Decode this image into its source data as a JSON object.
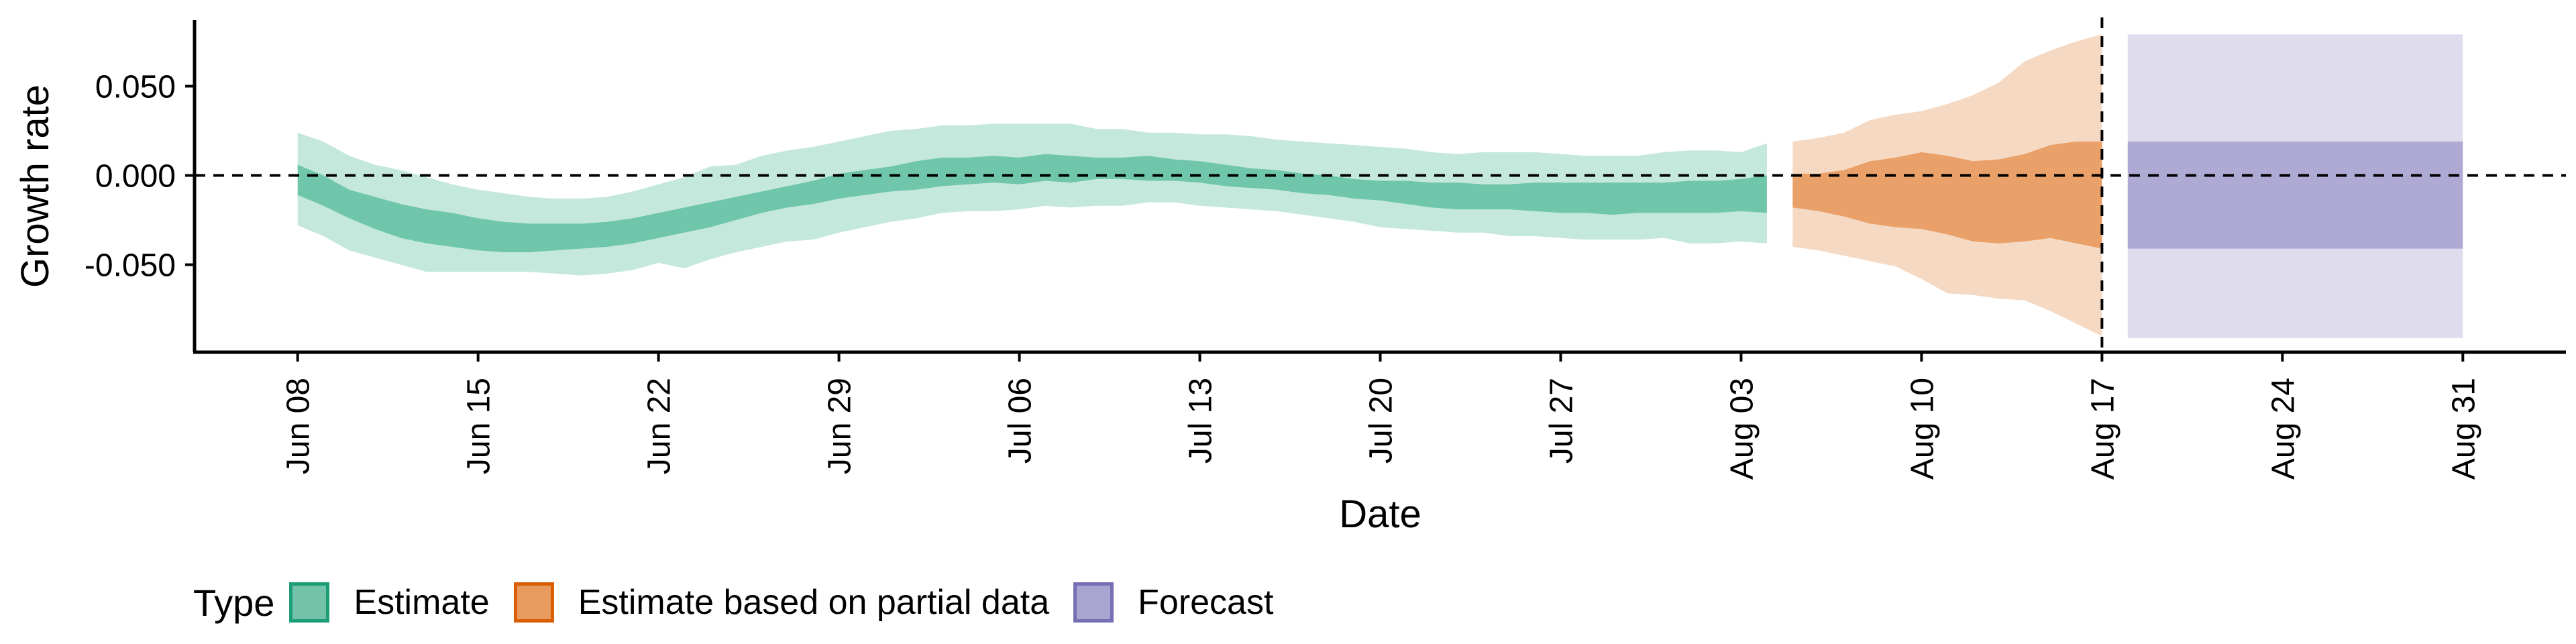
{
  "chart_data": {
    "type": "area",
    "title": "",
    "xlabel": "Date",
    "ylabel": "Growth rate",
    "x_ticks": [
      "Jun 08",
      "Jun 15",
      "Jun 22",
      "Jun 29",
      "Jul 06",
      "Jul 13",
      "Jul 20",
      "Jul 27",
      "Aug 03",
      "Aug 10",
      "Aug 17",
      "Aug 24",
      "Aug 31"
    ],
    "y_ticks": [
      "0.050",
      "0.000",
      "-0.050"
    ],
    "xlim": [
      "2021-06-04",
      "2021-09-04"
    ],
    "ylim": [
      -0.099,
      0.087
    ],
    "reference_line_y": 0.0,
    "reference_line_x": "2021-08-17",
    "grid": false,
    "legend": {
      "title": "Type",
      "position": "bottom-left",
      "entries": [
        {
          "label": "Estimate",
          "color": "#66c2a5",
          "fill": "#72c3a7",
          "border": "#1b9e77"
        },
        {
          "label": "Estimate based on partial data",
          "color": "#e89a5f",
          "fill": "#e89a5f",
          "border": "#d95f02"
        },
        {
          "label": "Forecast",
          "color": "#a9a4d0",
          "fill": "#a9a4d0",
          "border": "#7570b3"
        }
      ]
    },
    "series": [
      {
        "name": "Estimate",
        "color": "#66c2a5",
        "x": [
          "2021-06-08",
          "2021-06-09",
          "2021-06-10",
          "2021-06-11",
          "2021-06-12",
          "2021-06-13",
          "2021-06-14",
          "2021-06-15",
          "2021-06-16",
          "2021-06-17",
          "2021-06-18",
          "2021-06-19",
          "2021-06-20",
          "2021-06-21",
          "2021-06-22",
          "2021-06-23",
          "2021-06-24",
          "2021-06-25",
          "2021-06-26",
          "2021-06-27",
          "2021-06-28",
          "2021-06-29",
          "2021-06-30",
          "2021-07-01",
          "2021-07-02",
          "2021-07-03",
          "2021-07-04",
          "2021-07-05",
          "2021-07-06",
          "2021-07-07",
          "2021-07-08",
          "2021-07-09",
          "2021-07-10",
          "2021-07-11",
          "2021-07-12",
          "2021-07-13",
          "2021-07-14",
          "2021-07-15",
          "2021-07-16",
          "2021-07-17",
          "2021-07-18",
          "2021-07-19",
          "2021-07-20",
          "2021-07-21",
          "2021-07-22",
          "2021-07-23",
          "2021-07-24",
          "2021-07-25",
          "2021-07-26",
          "2021-07-27",
          "2021-07-28",
          "2021-07-29",
          "2021-07-30",
          "2021-07-31",
          "2021-08-01",
          "2021-08-02",
          "2021-08-03",
          "2021-08-04"
        ],
        "lower_90": [
          -0.028,
          -0.034,
          -0.042,
          -0.046,
          -0.05,
          -0.054,
          -0.054,
          -0.054,
          -0.054,
          -0.054,
          -0.055,
          -0.056,
          -0.055,
          -0.053,
          -0.049,
          -0.052,
          -0.047,
          -0.043,
          -0.04,
          -0.037,
          -0.036,
          -0.032,
          -0.029,
          -0.026,
          -0.024,
          -0.021,
          -0.02,
          -0.02,
          -0.019,
          -0.017,
          -0.018,
          -0.017,
          -0.017,
          -0.015,
          -0.015,
          -0.017,
          -0.018,
          -0.019,
          -0.02,
          -0.022,
          -0.024,
          -0.026,
          -0.029,
          -0.03,
          -0.031,
          -0.032,
          -0.032,
          -0.034,
          -0.034,
          -0.035,
          -0.036,
          -0.036,
          -0.036,
          -0.035,
          -0.038,
          -0.038,
          -0.037,
          -0.038
        ],
        "upper_90": [
          0.024,
          0.019,
          0.011,
          0.006,
          0.003,
          -0.001,
          -0.005,
          -0.008,
          -0.01,
          -0.012,
          -0.013,
          -0.013,
          -0.012,
          -0.009,
          -0.005,
          -0.001,
          0.005,
          0.006,
          0.011,
          0.014,
          0.016,
          0.019,
          0.022,
          0.025,
          0.026,
          0.028,
          0.028,
          0.029,
          0.029,
          0.029,
          0.029,
          0.026,
          0.026,
          0.024,
          0.024,
          0.023,
          0.023,
          0.022,
          0.02,
          0.019,
          0.018,
          0.017,
          0.016,
          0.015,
          0.013,
          0.012,
          0.013,
          0.013,
          0.013,
          0.012,
          0.011,
          0.011,
          0.011,
          0.013,
          0.014,
          0.014,
          0.013,
          0.018
        ],
        "lower_50": [
          -0.011,
          -0.017,
          -0.024,
          -0.03,
          -0.035,
          -0.038,
          -0.04,
          -0.042,
          -0.043,
          -0.043,
          -0.042,
          -0.041,
          -0.04,
          -0.038,
          -0.035,
          -0.032,
          -0.029,
          -0.025,
          -0.021,
          -0.018,
          -0.016,
          -0.013,
          -0.011,
          -0.009,
          -0.008,
          -0.006,
          -0.005,
          -0.004,
          -0.005,
          -0.003,
          -0.004,
          -0.002,
          -0.002,
          -0.003,
          -0.003,
          -0.004,
          -0.006,
          -0.007,
          -0.008,
          -0.01,
          -0.011,
          -0.013,
          -0.014,
          -0.016,
          -0.018,
          -0.019,
          -0.019,
          -0.019,
          -0.02,
          -0.021,
          -0.021,
          -0.022,
          -0.021,
          -0.021,
          -0.021,
          -0.021,
          -0.02,
          -0.021
        ],
        "upper_50": [
          0.006,
          0.0,
          -0.008,
          -0.012,
          -0.016,
          -0.019,
          -0.021,
          -0.024,
          -0.026,
          -0.027,
          -0.027,
          -0.027,
          -0.026,
          -0.024,
          -0.021,
          -0.018,
          -0.015,
          -0.012,
          -0.009,
          -0.006,
          -0.003,
          0.001,
          0.003,
          0.005,
          0.008,
          0.01,
          0.01,
          0.011,
          0.01,
          0.012,
          0.011,
          0.01,
          0.01,
          0.011,
          0.009,
          0.008,
          0.006,
          0.004,
          0.003,
          0.001,
          0.0,
          -0.002,
          -0.003,
          -0.003,
          -0.004,
          -0.004,
          -0.005,
          -0.005,
          -0.004,
          -0.004,
          -0.004,
          -0.004,
          -0.004,
          -0.004,
          -0.003,
          -0.003,
          -0.002,
          0.0
        ]
      },
      {
        "name": "Estimate based on partial data",
        "color": "#e89a5f",
        "x": [
          "2021-08-05",
          "2021-08-06",
          "2021-08-07",
          "2021-08-08",
          "2021-08-09",
          "2021-08-10",
          "2021-08-11",
          "2021-08-12",
          "2021-08-13",
          "2021-08-14",
          "2021-08-15",
          "2021-08-16",
          "2021-08-17"
        ],
        "lower_90": [
          -0.04,
          -0.042,
          -0.045,
          -0.048,
          -0.051,
          -0.058,
          -0.066,
          -0.067,
          -0.069,
          -0.07,
          -0.076,
          -0.083,
          -0.09
        ],
        "upper_90": [
          0.019,
          0.021,
          0.024,
          0.031,
          0.034,
          0.036,
          0.04,
          0.045,
          0.052,
          0.064,
          0.07,
          0.075,
          0.079
        ],
        "lower_50": [
          -0.018,
          -0.02,
          -0.023,
          -0.027,
          -0.029,
          -0.03,
          -0.033,
          -0.037,
          -0.038,
          -0.037,
          -0.035,
          -0.038,
          -0.041
        ],
        "upper_50": [
          0.001,
          0.001,
          0.003,
          0.008,
          0.01,
          0.013,
          0.011,
          0.008,
          0.009,
          0.012,
          0.017,
          0.019,
          0.019
        ]
      },
      {
        "name": "Forecast",
        "color": "#a9a4d0",
        "x": [
          "2021-08-18",
          "2021-08-31"
        ],
        "lower_90": [
          -0.091,
          -0.091
        ],
        "upper_90": [
          0.079,
          0.079
        ],
        "lower_50": [
          -0.041,
          -0.041
        ],
        "upper_50": [
          0.019,
          0.019
        ]
      }
    ]
  }
}
